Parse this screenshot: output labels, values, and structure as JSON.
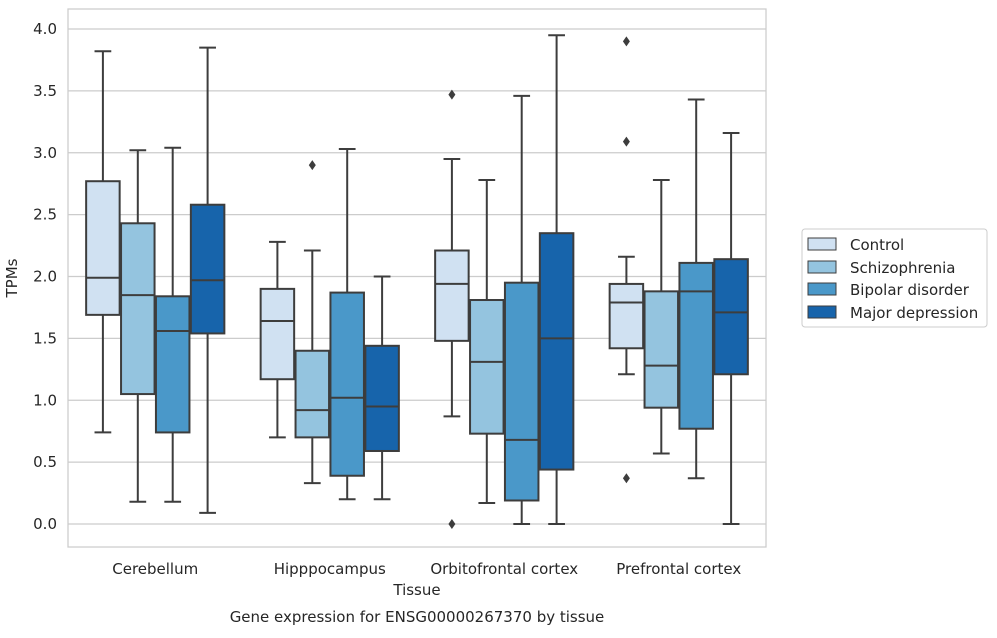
{
  "caption": "Gene expression for ENSG00000267370 by tissue",
  "chart_data": {
    "type": "boxplot",
    "xlabel": "Tissue",
    "ylabel": "TPMs",
    "ylim": [
      -0.2,
      4.15
    ],
    "yticks": [
      "0.0",
      "0.5",
      "1.0",
      "1.5",
      "2.0",
      "2.5",
      "3.0",
      "3.5",
      "4.0"
    ],
    "grid": "horizontal",
    "legend_position": "right-outside",
    "categories": [
      "Cerebellum",
      "Hipppocampus",
      "Orbitofrontal cortex",
      "Prefrontal cortex"
    ],
    "series": [
      {
        "name": "Control",
        "color": "#d0e1f2",
        "boxes": [
          {
            "whislo": 0.74,
            "q1": 1.69,
            "med": 1.99,
            "q3": 2.77,
            "whishi": 3.82,
            "fliers": []
          },
          {
            "whislo": 0.7,
            "q1": 1.17,
            "med": 1.64,
            "q3": 1.9,
            "whishi": 2.28,
            "fliers": []
          },
          {
            "whislo": 0.87,
            "q1": 1.48,
            "med": 1.94,
            "q3": 2.21,
            "whishi": 2.95,
            "fliers": [
              0.0,
              3.47
            ]
          },
          {
            "whislo": 1.21,
            "q1": 1.42,
            "med": 1.79,
            "q3": 1.94,
            "whishi": 2.16,
            "fliers": [
              0.37,
              3.09,
              3.9
            ]
          }
        ]
      },
      {
        "name": "Schizophrenia",
        "color": "#94c4df",
        "boxes": [
          {
            "whislo": 0.18,
            "q1": 1.05,
            "med": 1.85,
            "q3": 2.43,
            "whishi": 3.02,
            "fliers": []
          },
          {
            "whislo": 0.33,
            "q1": 0.7,
            "med": 0.92,
            "q3": 1.4,
            "whishi": 2.21,
            "fliers": [
              2.9
            ]
          },
          {
            "whislo": 0.17,
            "q1": 0.73,
            "med": 1.31,
            "q3": 1.81,
            "whishi": 2.78,
            "fliers": []
          },
          {
            "whislo": 0.57,
            "q1": 0.94,
            "med": 1.28,
            "q3": 1.88,
            "whishi": 2.78,
            "fliers": []
          }
        ]
      },
      {
        "name": "Bipolar disorder",
        "color": "#4a98c9",
        "boxes": [
          {
            "whislo": 0.18,
            "q1": 0.74,
            "med": 1.56,
            "q3": 1.84,
            "whishi": 3.04,
            "fliers": []
          },
          {
            "whislo": 0.2,
            "q1": 0.39,
            "med": 1.02,
            "q3": 1.87,
            "whishi": 3.03,
            "fliers": []
          },
          {
            "whislo": 0.0,
            "q1": 0.19,
            "med": 0.68,
            "q3": 1.95,
            "whishi": 3.46,
            "fliers": []
          },
          {
            "whislo": 0.37,
            "q1": 0.77,
            "med": 1.88,
            "q3": 2.11,
            "whishi": 3.43,
            "fliers": []
          }
        ]
      },
      {
        "name": "Major depression",
        "color": "#1764ab",
        "boxes": [
          {
            "whislo": 0.09,
            "q1": 1.54,
            "med": 1.97,
            "q3": 2.58,
            "whishi": 3.85,
            "fliers": []
          },
          {
            "whislo": 0.2,
            "q1": 0.59,
            "med": 0.95,
            "q3": 1.44,
            "whishi": 2.0,
            "fliers": []
          },
          {
            "whislo": 0.0,
            "q1": 0.44,
            "med": 1.5,
            "q3": 2.35,
            "whishi": 3.95,
            "fliers": []
          },
          {
            "whislo": 0.0,
            "q1": 1.21,
            "med": 1.71,
            "q3": 2.14,
            "whishi": 3.16,
            "fliers": []
          }
        ]
      }
    ]
  }
}
